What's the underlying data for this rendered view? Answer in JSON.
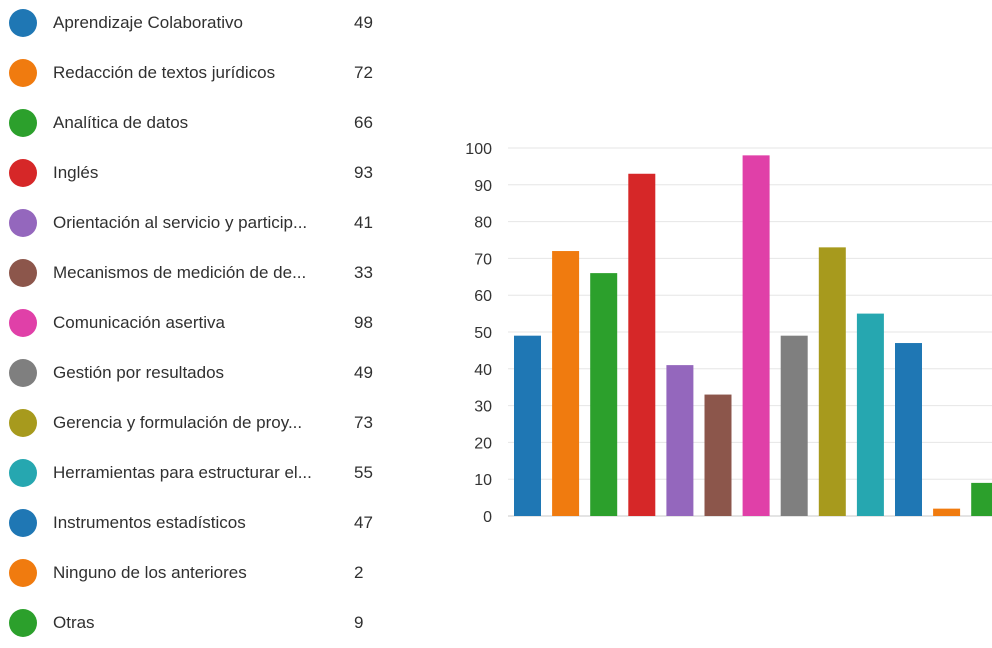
{
  "chart_data": {
    "type": "bar",
    "title": "",
    "xlabel": "",
    "ylabel": "",
    "ylim": [
      0,
      100
    ],
    "yticks": [
      "100",
      "90",
      "80",
      "70",
      "60",
      "50",
      "40",
      "30",
      "20",
      "10",
      "0"
    ],
    "grid": true,
    "legend_position": "left",
    "categories": [
      "Aprendizaje Colaborativo",
      "Redacción de textos jurídicos",
      "Analítica de datos",
      "Inglés",
      "Orientación al servicio y particip...",
      "Mecanismos de medición de de...",
      "Comunicación asertiva",
      "Gestión por resultados",
      "Gerencia y formulación de proy...",
      "Herramientas para estructurar el...",
      "Instrumentos estadísticos",
      "Ninguno de los anteriores",
      "Otras"
    ],
    "values": [
      49,
      72,
      66,
      93,
      41,
      33,
      98,
      49,
      73,
      55,
      47,
      2,
      9
    ],
    "value_labels": [
      "49",
      "72",
      "66",
      "93",
      "41",
      "33",
      "98",
      "49",
      "73",
      "55",
      "47",
      "2",
      "9"
    ],
    "colors": [
      "#1f77b4",
      "#f07b0f",
      "#2ca02c",
      "#d62728",
      "#9467bd",
      "#8c564b",
      "#e040a8",
      "#7f7f7f",
      "#a79a1d",
      "#26a7b0",
      "#1f77b4",
      "#f07b0f",
      "#2ca02c"
    ]
  }
}
